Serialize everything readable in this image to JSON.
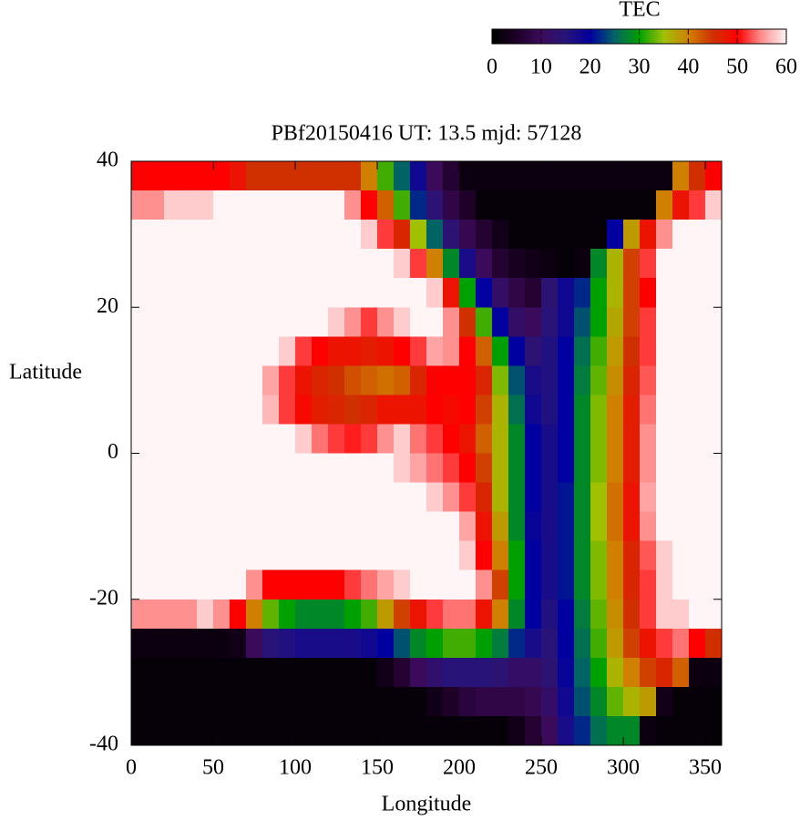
{
  "chart_data": {
    "type": "heatmap",
    "title": "PBf20150416  UT: 13.5  mjd: 57128",
    "xlabel": "Longitude",
    "ylabel": "Latitude",
    "colorbar_label": "TEC",
    "x": [
      5,
      15,
      25,
      35,
      45,
      55,
      65,
      75,
      85,
      95,
      105,
      115,
      125,
      135,
      145,
      155,
      165,
      175,
      185,
      195,
      205,
      215,
      225,
      235,
      245,
      255,
      265,
      275,
      285,
      295,
      305,
      315,
      325,
      335,
      345,
      355
    ],
    "y": [
      38,
      34,
      30,
      26,
      22,
      18,
      14,
      10,
      6,
      2,
      -2,
      -6,
      -10,
      -14,
      -18,
      -22,
      -26,
      -30,
      -34,
      -38
    ],
    "xlim": [
      0,
      360
    ],
    "xticks": [
      0,
      50,
      100,
      150,
      200,
      250,
      300,
      350
    ],
    "ylim": [
      -40,
      40
    ],
    "yticks": [
      -40,
      -20,
      0,
      20,
      40
    ],
    "clim": [
      0,
      60
    ],
    "cticks": [
      0,
      10,
      20,
      30,
      40,
      50,
      60
    ],
    "colors": [
      "#000000",
      "#1e0028",
      "#3c0a5a",
      "#281478",
      "#0000a0",
      "#006464",
      "#00a000",
      "#a0c000",
      "#d08000",
      "#d03000",
      "#ff0000",
      "#ff9090",
      "#fff4f6"
    ],
    "z": [
      [
        50,
        50,
        50,
        50,
        50,
        50,
        48,
        45,
        45,
        45,
        45,
        45,
        45,
        45,
        40,
        32,
        25,
        18,
        10,
        6,
        2,
        2,
        2,
        2,
        2,
        2,
        2,
        2,
        2,
        2,
        2,
        2,
        2,
        40,
        45,
        50
      ],
      [
        55,
        55,
        58,
        58,
        58,
        60,
        60,
        60,
        60,
        60,
        60,
        60,
        60,
        55,
        50,
        42,
        32,
        22,
        14,
        8,
        5,
        1,
        1,
        1,
        1,
        1,
        1,
        1,
        1,
        1,
        1,
        1,
        40,
        48,
        52,
        58
      ],
      [
        60,
        60,
        60,
        60,
        60,
        60,
        60,
        60,
        60,
        60,
        60,
        60,
        60,
        60,
        58,
        52,
        46,
        35,
        25,
        14,
        9,
        6,
        3,
        1,
        1,
        1,
        1,
        1,
        1,
        20,
        38,
        48,
        55,
        60,
        60,
        60
      ],
      [
        60,
        60,
        60,
        60,
        60,
        60,
        60,
        60,
        60,
        60,
        60,
        60,
        60,
        60,
        60,
        60,
        58,
        52,
        40,
        28,
        17,
        10,
        6,
        4,
        3,
        2,
        1,
        2,
        28,
        36,
        44,
        52,
        60,
        60,
        60,
        60
      ],
      [
        60,
        60,
        60,
        60,
        60,
        60,
        60,
        60,
        60,
        60,
        60,
        60,
        60,
        60,
        60,
        60,
        60,
        60,
        58,
        48,
        30,
        20,
        12,
        8,
        6,
        14,
        18,
        22,
        30,
        36,
        44,
        50,
        60,
        60,
        60,
        60
      ],
      [
        60,
        60,
        60,
        60,
        60,
        60,
        60,
        60,
        60,
        60,
        60,
        60,
        58,
        55,
        52,
        55,
        58,
        60,
        60,
        55,
        45,
        32,
        20,
        12,
        10,
        15,
        18,
        24,
        30,
        37,
        44,
        52,
        60,
        60,
        60,
        60
      ],
      [
        60,
        60,
        60,
        60,
        60,
        60,
        60,
        60,
        60,
        58,
        52,
        50,
        48,
        48,
        47,
        48,
        50,
        52,
        56,
        55,
        50,
        42,
        30,
        20,
        14,
        16,
        20,
        26,
        32,
        38,
        45,
        52,
        60,
        60,
        60,
        60
      ],
      [
        60,
        60,
        60,
        60,
        60,
        60,
        60,
        60,
        56,
        52,
        48,
        46,
        45,
        43,
        42,
        41,
        42,
        46,
        50,
        50,
        50,
        46,
        34,
        24,
        17,
        16,
        20,
        27,
        33,
        39,
        46,
        53,
        60,
        60,
        60,
        60
      ],
      [
        60,
        60,
        60,
        60,
        60,
        60,
        60,
        60,
        57,
        52,
        49,
        47,
        46,
        45,
        46,
        48,
        48,
        48,
        50,
        49,
        50,
        44,
        36,
        26,
        18,
        16,
        20,
        28,
        34,
        40,
        47,
        54,
        60,
        60,
        60,
        60
      ],
      [
        60,
        60,
        60,
        60,
        60,
        60,
        60,
        60,
        60,
        60,
        58,
        54,
        52,
        51,
        52,
        55,
        58,
        54,
        52,
        50,
        48,
        42,
        36,
        28,
        20,
        17,
        20,
        28,
        34,
        40,
        47,
        55,
        60,
        60,
        60,
        60
      ],
      [
        60,
        60,
        60,
        60,
        60,
        60,
        60,
        60,
        60,
        60,
        60,
        60,
        60,
        60,
        60,
        60,
        58,
        56,
        54,
        52,
        50,
        44,
        36,
        28,
        20,
        17,
        20,
        28,
        34,
        40,
        47,
        55,
        60,
        60,
        60,
        60
      ],
      [
        60,
        60,
        60,
        60,
        60,
        60,
        60,
        60,
        60,
        60,
        60,
        60,
        60,
        60,
        60,
        60,
        60,
        60,
        58,
        55,
        52,
        46,
        36,
        28,
        20,
        17,
        21,
        28,
        35,
        41,
        48,
        56,
        60,
        60,
        60,
        60
      ],
      [
        60,
        60,
        60,
        60,
        60,
        60,
        60,
        60,
        60,
        60,
        60,
        60,
        60,
        60,
        60,
        60,
        60,
        60,
        60,
        60,
        56,
        48,
        38,
        28,
        19,
        17,
        21,
        28,
        35,
        41,
        48,
        55,
        60,
        60,
        60,
        60
      ],
      [
        60,
        60,
        60,
        60,
        60,
        60,
        60,
        60,
        60,
        60,
        60,
        60,
        60,
        60,
        60,
        60,
        60,
        60,
        60,
        60,
        58,
        50,
        40,
        30,
        20,
        17,
        21,
        28,
        34,
        40,
        46,
        53,
        58,
        60,
        60,
        60
      ],
      [
        60,
        60,
        60,
        60,
        60,
        60,
        60,
        55,
        50,
        50,
        50,
        50,
        50,
        52,
        54,
        56,
        58,
        60,
        60,
        60,
        60,
        55,
        44,
        30,
        20,
        17,
        21,
        28,
        34,
        40,
        46,
        52,
        58,
        60,
        60,
        60
      ],
      [
        55,
        55,
        55,
        55,
        58,
        55,
        50,
        40,
        33,
        30,
        28,
        28,
        28,
        30,
        32,
        38,
        44,
        48,
        52,
        54,
        54,
        48,
        40,
        28,
        20,
        16,
        20,
        27,
        33,
        39,
        45,
        52,
        58,
        58,
        60,
        60
      ],
      [
        2,
        2,
        2,
        2,
        2,
        2,
        3,
        10,
        15,
        16,
        17,
        17,
        17,
        17,
        18,
        20,
        24,
        28,
        30,
        32,
        32,
        30,
        27,
        22,
        17,
        15,
        20,
        26,
        32,
        38,
        44,
        48,
        52,
        54,
        50,
        45
      ],
      [
        1,
        1,
        1,
        1,
        1,
        1,
        1,
        1,
        1,
        1,
        1,
        1,
        1,
        1,
        1,
        3,
        6,
        10,
        13,
        15,
        15,
        15,
        14,
        12,
        12,
        14,
        19,
        25,
        30,
        36,
        40,
        44,
        46,
        42,
        2,
        2
      ],
      [
        1,
        1,
        1,
        1,
        1,
        1,
        1,
        1,
        1,
        1,
        1,
        1,
        1,
        1,
        1,
        1,
        1,
        1,
        3,
        5,
        7,
        8,
        8,
        8,
        9,
        12,
        18,
        24,
        28,
        33,
        36,
        38,
        3,
        1,
        1,
        1
      ],
      [
        1,
        1,
        1,
        1,
        1,
        1,
        1,
        1,
        1,
        1,
        1,
        1,
        1,
        1,
        1,
        1,
        1,
        1,
        1,
        1,
        1,
        1,
        1,
        3,
        6,
        10,
        17,
        22,
        26,
        28,
        28,
        2,
        1,
        1,
        1,
        1
      ]
    ]
  }
}
